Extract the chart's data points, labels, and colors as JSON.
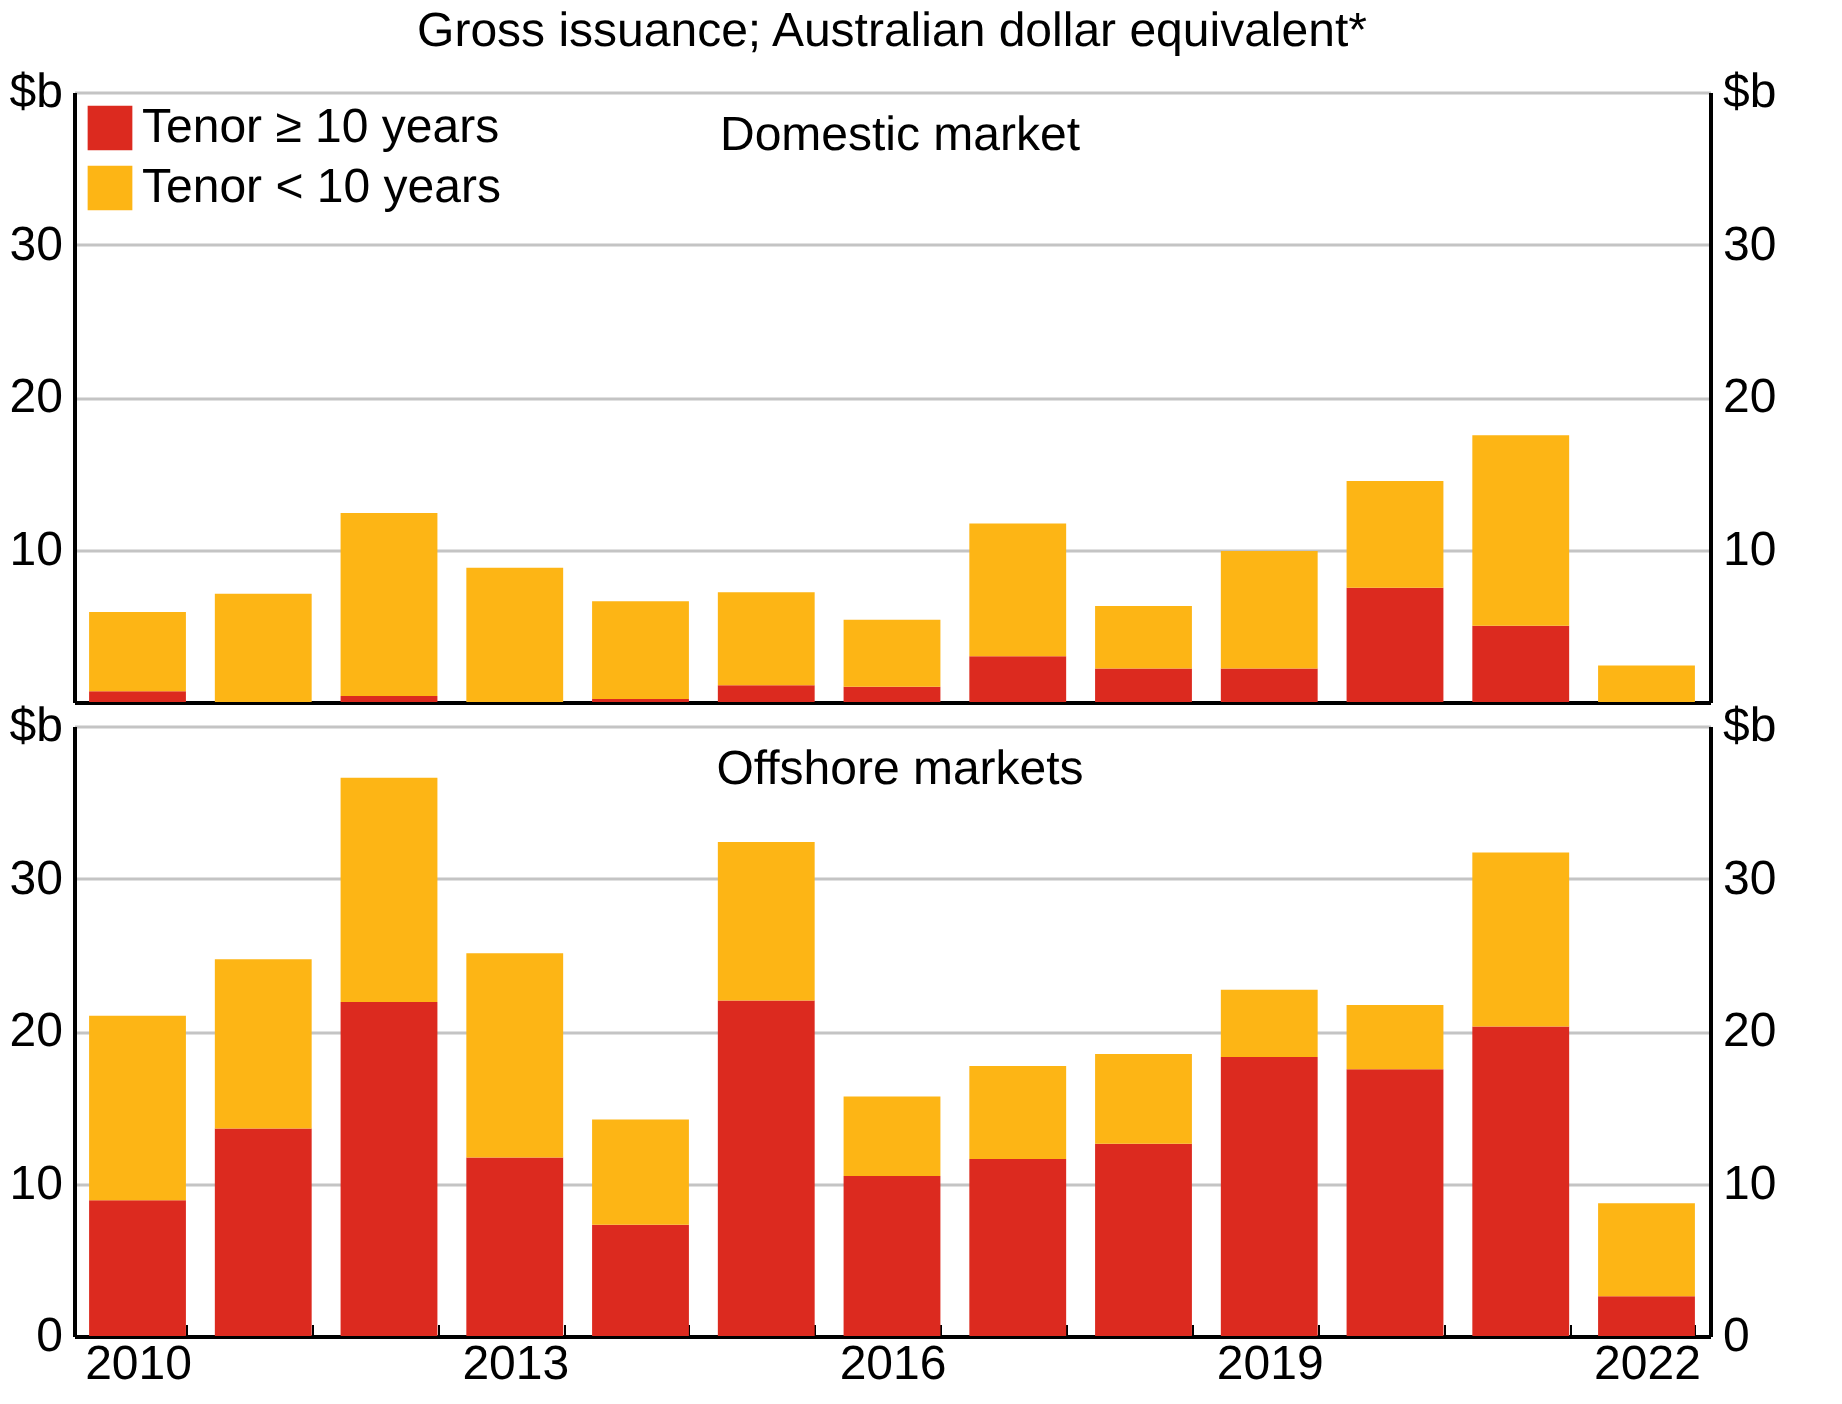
{
  "chart_data": [
    {
      "type": "bar",
      "title": "Gross issuance; Australian dollar equivalent*",
      "annotations": [
        "Domestic market"
      ],
      "stacked": true,
      "legend": "top left",
      "grid": "y",
      "tick_labels": "y",
      "categories": [
        "2010",
        null,
        null,
        "2013",
        null,
        null,
        "2016",
        null,
        null,
        "2019",
        null,
        null,
        "2022"
      ],
      "ylim": [
        0,
        40
      ],
      "yticks": [
        10,
        20,
        30,
        {
          "value": 40,
          "label": "$b"
        }
      ],
      "y2lim": [
        0,
        40
      ],
      "y2ticks": [
        10,
        20,
        30,
        {
          "value": 40,
          "label": "$b"
        }
      ],
      "series": [
        {
          "name": "Tenor ≥ 10 years",
          "color": "#dc2a1f",
          "values": [
            0.7,
            0,
            0.4,
            0,
            0.2,
            1.1,
            1.0,
            3.0,
            2.2,
            2.2,
            7.5,
            5.0,
            0
          ]
        },
        {
          "name": "Tenor < 10 years",
          "color": "#fdb515",
          "values": [
            5.2,
            7.1,
            12.0,
            8.8,
            6.4,
            6.1,
            4.4,
            8.7,
            4.1,
            7.7,
            7.0,
            12.5,
            2.4
          ]
        }
      ]
    },
    {
      "type": "bar",
      "annotations": [
        "Offshore markets"
      ],
      "stacked": true,
      "grid": "y",
      "categories": [
        "2010",
        null,
        null,
        "2013",
        null,
        null,
        "2016",
        null,
        null,
        "2019",
        null,
        null,
        "2022"
      ],
      "ylim": [
        0,
        40
      ],
      "yticks": [
        0,
        10,
        20,
        30,
        {
          "value": 40,
          "label": "$b"
        }
      ],
      "y2lim": [
        0,
        40
      ],
      "y2ticks": [
        0,
        10,
        20,
        30,
        {
          "value": 40,
          "label": "$b"
        }
      ],
      "series": [
        {
          "color": "#dc2a1f",
          "values": [
            8.9,
            13.6,
            21.9,
            11.7,
            7.3,
            22.0,
            10.5,
            11.6,
            12.6,
            18.3,
            17.5,
            20.3,
            2.6
          ]
        },
        {
          "color": "#fdb515",
          "values": [
            12.1,
            11.1,
            14.7,
            13.4,
            6.9,
            10.4,
            5.2,
            6.1,
            5.9,
            4.4,
            4.2,
            11.4,
            6.1
          ]
        }
      ]
    }
  ]
}
